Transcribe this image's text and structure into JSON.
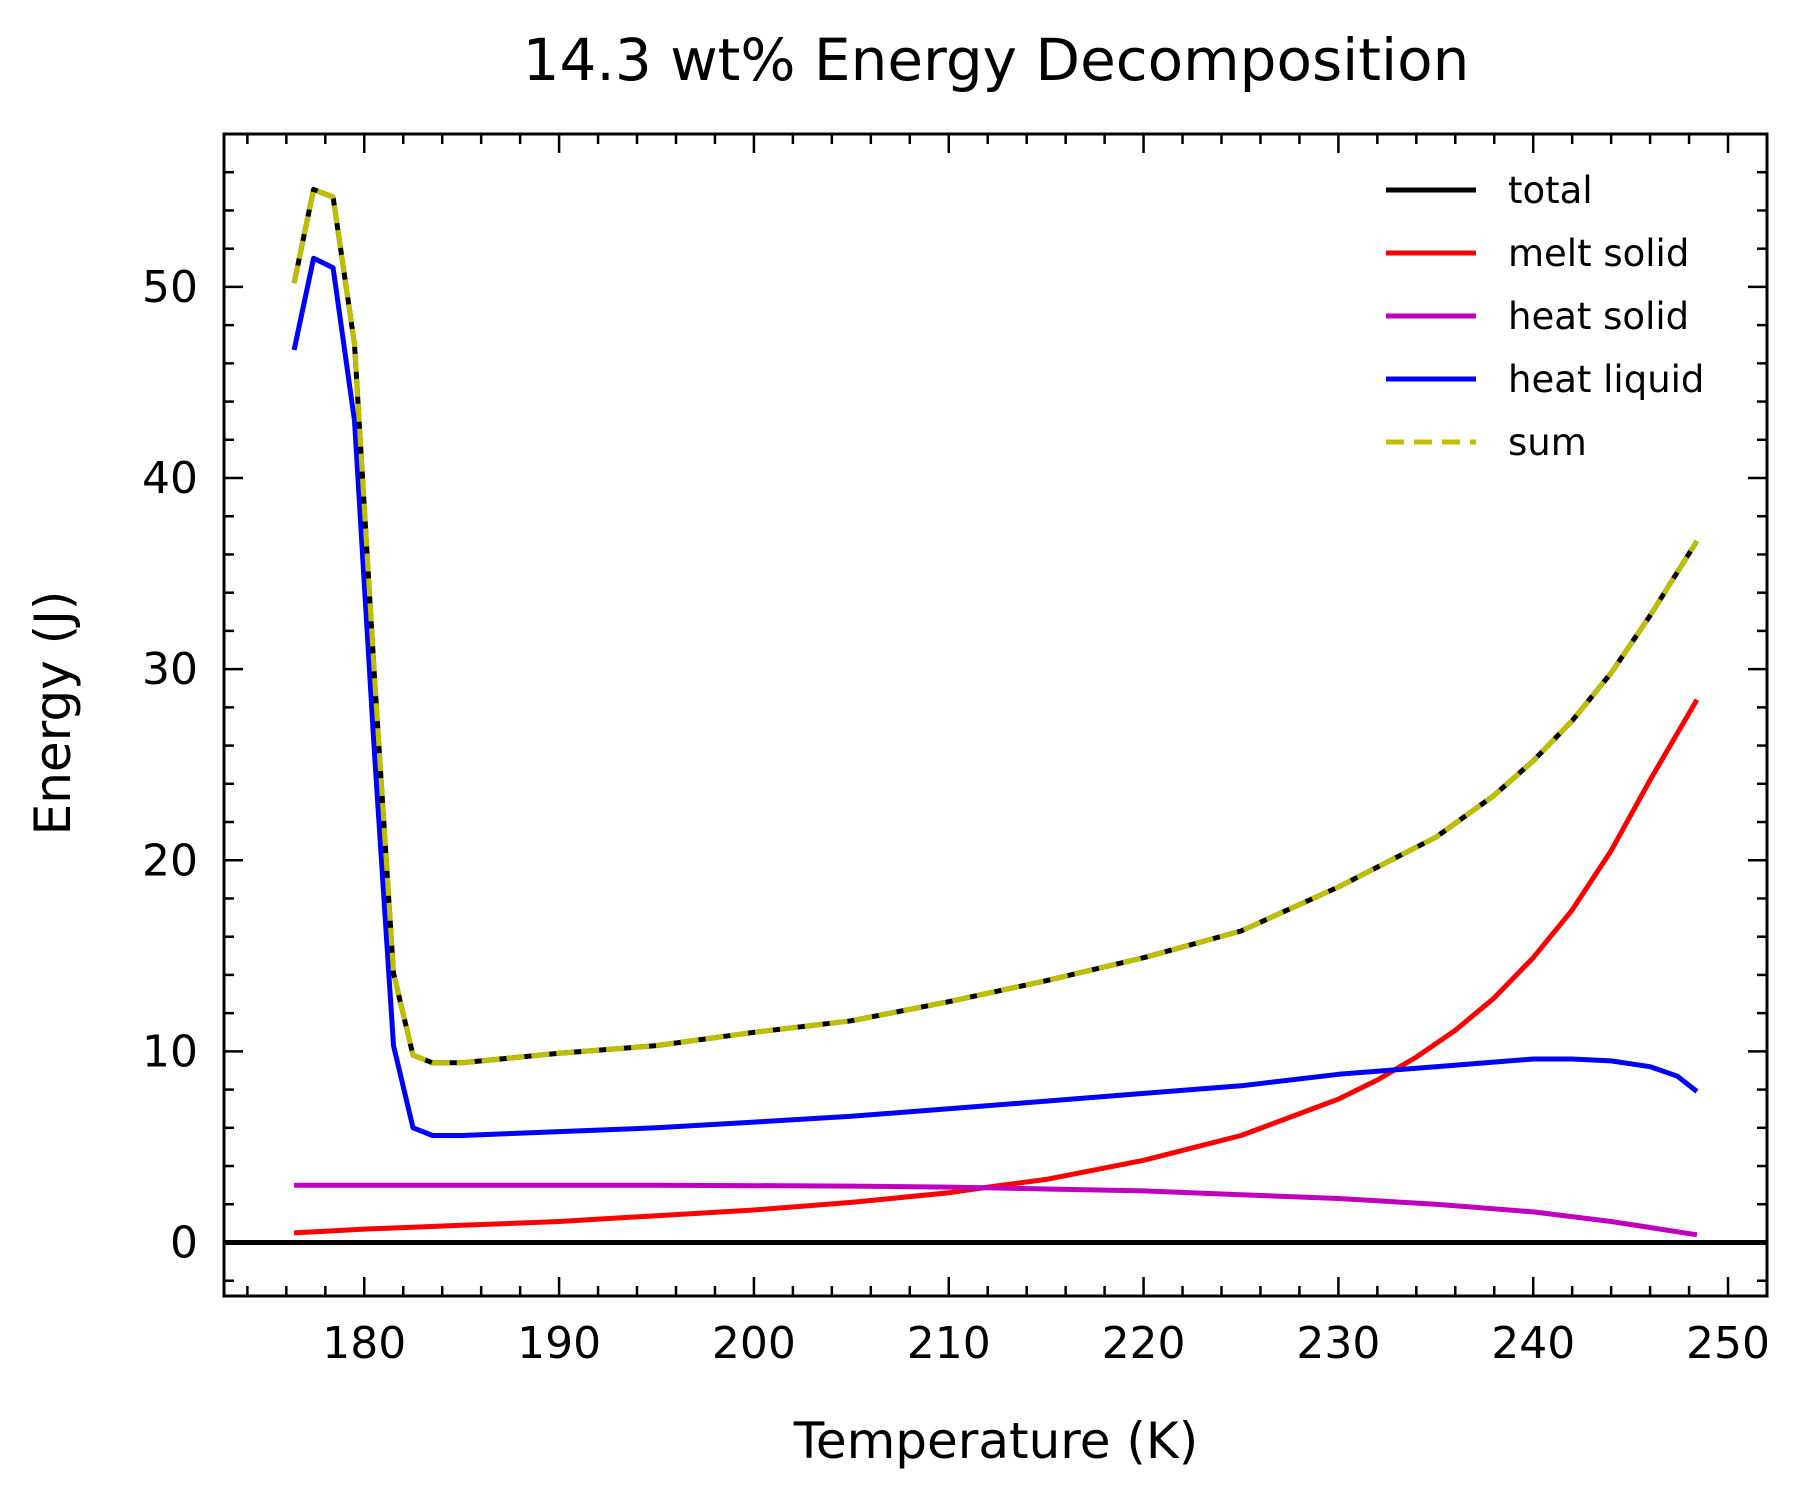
{
  "chart_data": {
    "type": "line",
    "title": "14.3 wt% Energy Decomposition",
    "xlabel": "Temperature (K)",
    "ylabel": "Energy (J)",
    "xlim": [
      172.8,
      252
    ],
    "ylim": [
      -2.8,
      58
    ],
    "xticks": [
      180,
      190,
      200,
      210,
      220,
      230,
      240,
      250
    ],
    "yticks": [
      0,
      10,
      20,
      30,
      40,
      50
    ],
    "x_minor_step": 2,
    "y_minor_step": 2,
    "tick_direction": "in",
    "grid": false,
    "legend_position": "top-right",
    "series": [
      {
        "name": "total",
        "color": "#000000",
        "style": "solid",
        "x": [
          172.8,
          252
        ],
        "y": [
          0,
          0
        ]
      },
      {
        "name": "melt solid",
        "color": "#ff0000",
        "style": "solid",
        "x": [
          176.4,
          180,
          185,
          190,
          195,
          200,
          205,
          210,
          212,
          215,
          220,
          225,
          230,
          232,
          234,
          236,
          238,
          240,
          242,
          244,
          246,
          248.4
        ],
        "y": [
          0.5,
          0.7,
          0.9,
          1.1,
          1.4,
          1.7,
          2.1,
          2.6,
          2.9,
          3.3,
          4.3,
          5.6,
          7.5,
          8.5,
          9.7,
          11.1,
          12.8,
          14.9,
          17.4,
          20.5,
          24.2,
          28.4
        ]
      },
      {
        "name": "heat solid",
        "color": "#bf00bf",
        "style": "solid",
        "x": [
          176.4,
          185,
          195,
          205,
          210,
          215,
          220,
          225,
          230,
          235,
          240,
          244,
          248.4
        ],
        "y": [
          3.0,
          3.0,
          3.0,
          2.95,
          2.9,
          2.8,
          2.7,
          2.5,
          2.3,
          2.0,
          1.6,
          1.1,
          0.4
        ]
      },
      {
        "name": "heat liquid",
        "color": "#0000ff",
        "style": "solid",
        "x": [
          176.4,
          177.4,
          178.4,
          179.5,
          180.5,
          181.5,
          182.5,
          183.5,
          185,
          190,
          195,
          200,
          205,
          210,
          215,
          220,
          225,
          230,
          235,
          240,
          242,
          244,
          246,
          247.4,
          248.4
        ],
        "y": [
          46.7,
          51.5,
          51.0,
          43.0,
          26.0,
          10.3,
          6.0,
          5.6,
          5.6,
          5.8,
          6.0,
          6.3,
          6.6,
          7.0,
          7.4,
          7.8,
          8.2,
          8.8,
          9.2,
          9.6,
          9.6,
          9.5,
          9.2,
          8.7,
          7.9
        ]
      },
      {
        "name": "sum",
        "color": "#bfbf00",
        "style": "dashed",
        "x": [
          176.4,
          177.4,
          178.4,
          179.5,
          180.5,
          181.5,
          182.5,
          183.5,
          185,
          190,
          195,
          200,
          205,
          210,
          215,
          220,
          225,
          230,
          235,
          238,
          240,
          242,
          244,
          246,
          248.4
        ],
        "y": [
          50.2,
          55.1,
          54.7,
          47.0,
          30.0,
          14.1,
          9.8,
          9.4,
          9.4,
          9.9,
          10.3,
          11.0,
          11.6,
          12.6,
          13.7,
          14.9,
          16.3,
          18.6,
          21.2,
          23.4,
          25.2,
          27.3,
          29.8,
          32.8,
          36.7
        ]
      }
    ],
    "overlay": {
      "color": "#000000",
      "style": "solid",
      "note_series": "sum"
    }
  }
}
